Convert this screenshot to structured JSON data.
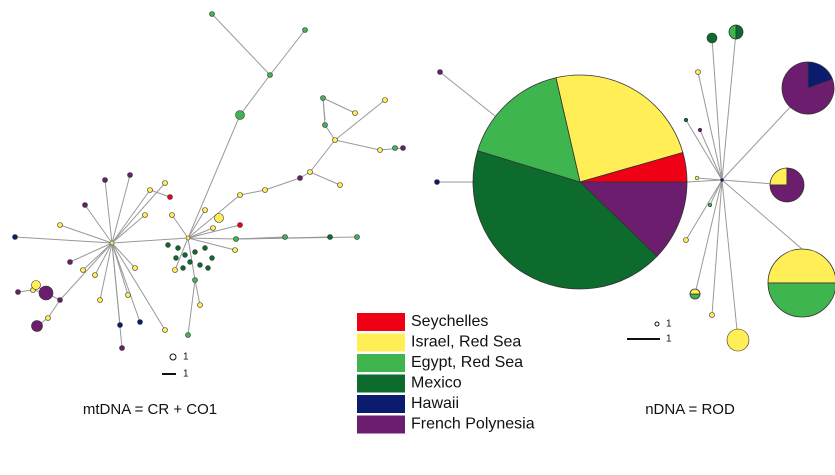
{
  "left_panel": {
    "caption": "mtDNA = CR + CO1",
    "scale": {
      "circle_label": "1",
      "line_label": "1"
    }
  },
  "right_panel": {
    "caption": "nDNA = ROD",
    "scale": {
      "circle_label": "1",
      "line_label": "1"
    }
  },
  "legend": {
    "items": [
      {
        "label": "Seychelles",
        "color": "#f00014"
      },
      {
        "label": "Israel, Red Sea",
        "color": "#ffee55"
      },
      {
        "label": "Egypt, Red Sea",
        "color": "#3fb550"
      },
      {
        "label": "Mexico",
        "color": "#0d6b2d"
      },
      {
        "label": "Hawaii",
        "color": "#0b1c6e"
      },
      {
        "label": "French Polynesia",
        "color": "#6c1d6e"
      }
    ]
  }
}
